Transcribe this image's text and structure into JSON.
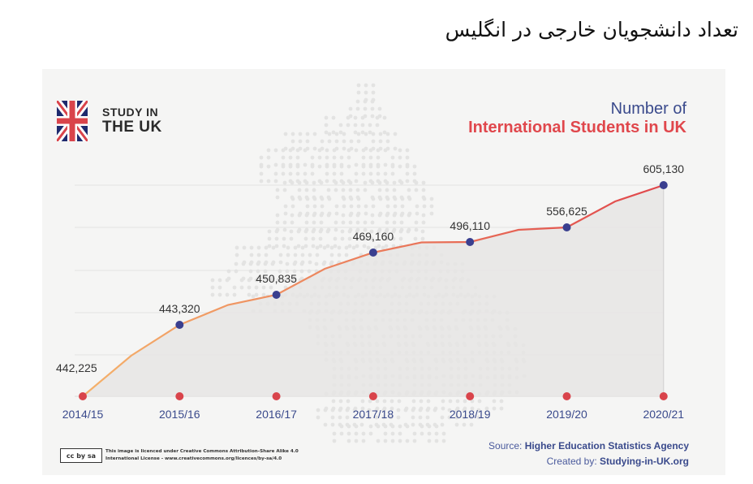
{
  "page_title": "تعداد دانشجویان خارجی در انگلیس",
  "brand": {
    "line1": "STUDY IN",
    "line2": "THE UK",
    "flag_icon": "uk-flag-icon"
  },
  "chart_title": {
    "line1": "Number of",
    "line2": "International Students in UK"
  },
  "colors": {
    "card_bg": "#f5f5f4",
    "line_start": "#f5b26b",
    "line_end": "#e0474c",
    "point": "#3a3f8f",
    "axis_dot": "#d9444b",
    "tick_text": "#3a4a8c",
    "label_text": "#333333",
    "area_fill": "#e6e5e4"
  },
  "chart_data": {
    "type": "area",
    "title": "Number of International Students in UK",
    "categories": [
      "2014/15",
      "2015/16",
      "2016/17",
      "2017/18",
      "2018/19",
      "2019/20",
      "2020/21"
    ],
    "values": [
      442225,
      443320,
      450835,
      469160,
      496110,
      556625,
      605130
    ],
    "value_labels": [
      "442,225",
      "443,320",
      "450,835",
      "469,160",
      "496,110",
      "556,625",
      "605,130"
    ],
    "xlabel": "",
    "ylabel": "",
    "grid": "horizontal",
    "legend": "none"
  },
  "license": {
    "badge": "cc by sa",
    "line1": "This image is licenced under Creative Commons Attribution-Share Alike 4.0",
    "line2": "International License - www.creativecommons.org/licences/by-sa/4.0"
  },
  "credits": {
    "source_label": "Source:",
    "source_value": "Higher Education Statistics Agency",
    "created_label": "Created by:",
    "created_value": "Studying-in-UK.org"
  }
}
